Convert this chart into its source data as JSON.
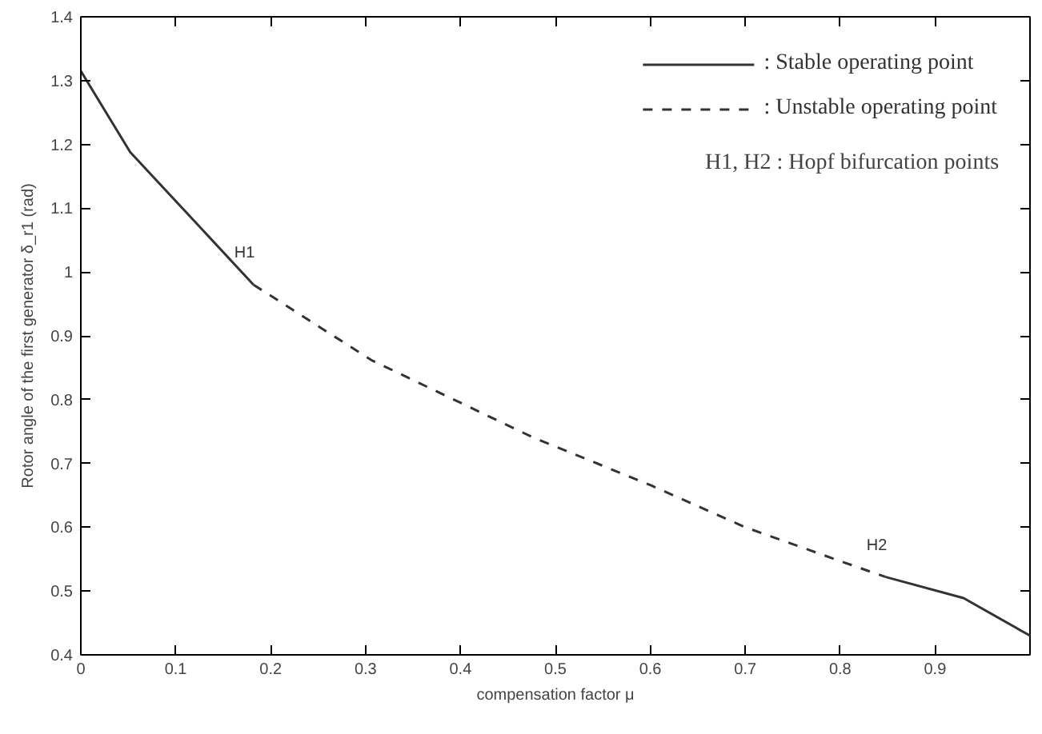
{
  "chart_data": {
    "type": "line",
    "xlabel": "compensation factor μ",
    "ylabel": "Rotor angle of the first generator δ_r1 (rad)",
    "xlim": [
      0,
      1
    ],
    "ylim": [
      0.4,
      1.4
    ],
    "xticks": [
      0,
      0.1,
      0.2,
      0.3,
      0.4,
      0.5,
      0.6,
      0.7,
      0.8,
      0.9
    ],
    "yticks": [
      0.4,
      0.5,
      0.6,
      0.7,
      0.8,
      0.9,
      1,
      1.1,
      1.2,
      1.3,
      1.4
    ],
    "legend": "top right",
    "series": [
      {
        "name": ": Stable operating point",
        "color": "#333333",
        "line_style": "solid",
        "x": [
          0,
          0.052,
          0.182,
          0.5,
          0.848,
          0.93,
          1.0
        ],
        "values": [
          1.315,
          1.188,
          0.98,
          null,
          0.522,
          0.489,
          0.43
        ]
      },
      {
        "name": ": Unstable operating point",
        "color": "#333333",
        "line_style": "dashed",
        "x": [
          0.182,
          0.306,
          0.476,
          0.6,
          0.7,
          0.8,
          0.848
        ],
        "values": [
          0.98,
          0.862,
          0.741,
          0.666,
          0.6,
          0.547,
          0.522
        ]
      }
    ],
    "annotations": [
      {
        "text": "H1",
        "x": 0.182,
        "y": 0.98
      },
      {
        "text": "H2",
        "x": 0.848,
        "y": 0.522
      },
      "H1, H2 : Hopf bifurcation points"
    ]
  }
}
